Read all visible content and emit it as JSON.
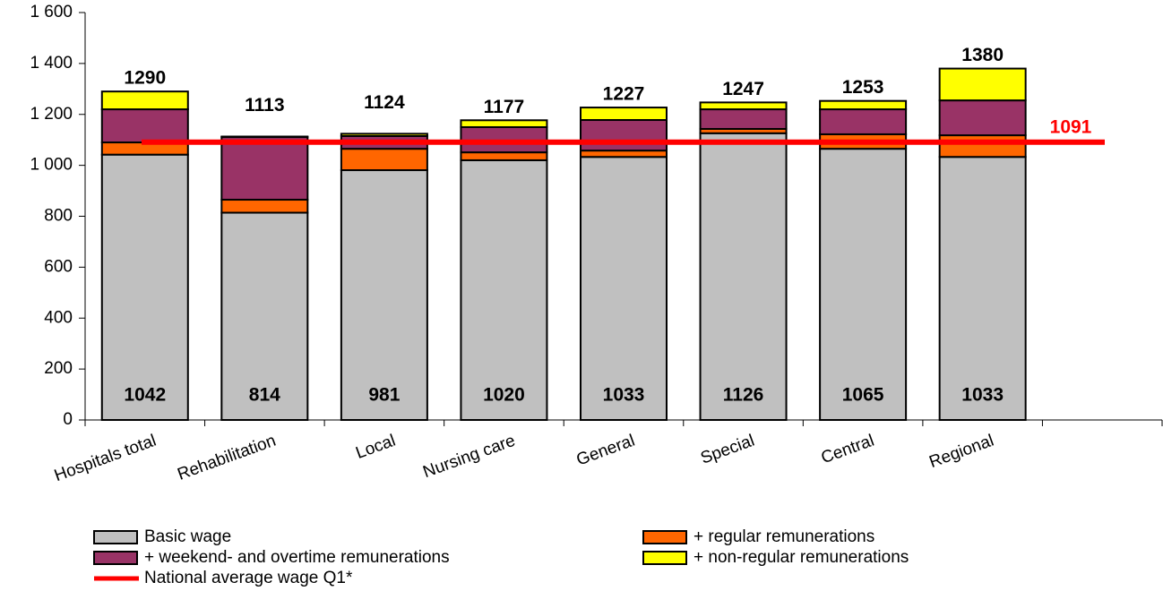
{
  "chart_data": {
    "type": "stacked_bar",
    "categories": [
      "Hospitals total",
      "Rehabilitation",
      "Local",
      "Nursing care",
      "General",
      "Special",
      "Central",
      "Regional",
      null
    ],
    "series": [
      {
        "name": "Basic wage",
        "color": "#c0c0c0",
        "values": [
          1042,
          814,
          981,
          1020,
          1033,
          1126,
          1065,
          1033,
          null
        ]
      },
      {
        "name": "+ regular remunerations",
        "color": "#ff6600",
        "values": [
          48,
          51,
          84,
          31,
          25,
          17,
          57,
          85,
          null
        ]
      },
      {
        "name": "+ weekend- and overtime remunerations",
        "color": "#993366",
        "values": [
          130,
          246,
          50,
          99,
          120,
          77,
          98,
          137,
          null
        ]
      },
      {
        "name": "+ non-regular remunerations",
        "color": "#ffff00",
        "values": [
          70,
          2,
          9,
          27,
          49,
          27,
          33,
          125,
          null
        ]
      }
    ],
    "totals": [
      1290,
      1113,
      1124,
      1177,
      1227,
      1247,
      1253,
      1380,
      null
    ],
    "reference_line": {
      "name": "National average wage Q1*",
      "color": "#ff0000",
      "value": 1091
    },
    "ylim": [
      0,
      1600
    ],
    "yticks": [
      0,
      200,
      400,
      600,
      800,
      {
        "value": 1000,
        "label": "1 000"
      },
      {
        "value": 1200,
        "label": "1 200"
      },
      {
        "value": 1400,
        "label": "1 400"
      },
      {
        "value": 1600,
        "label": "1 600"
      }
    ]
  }
}
